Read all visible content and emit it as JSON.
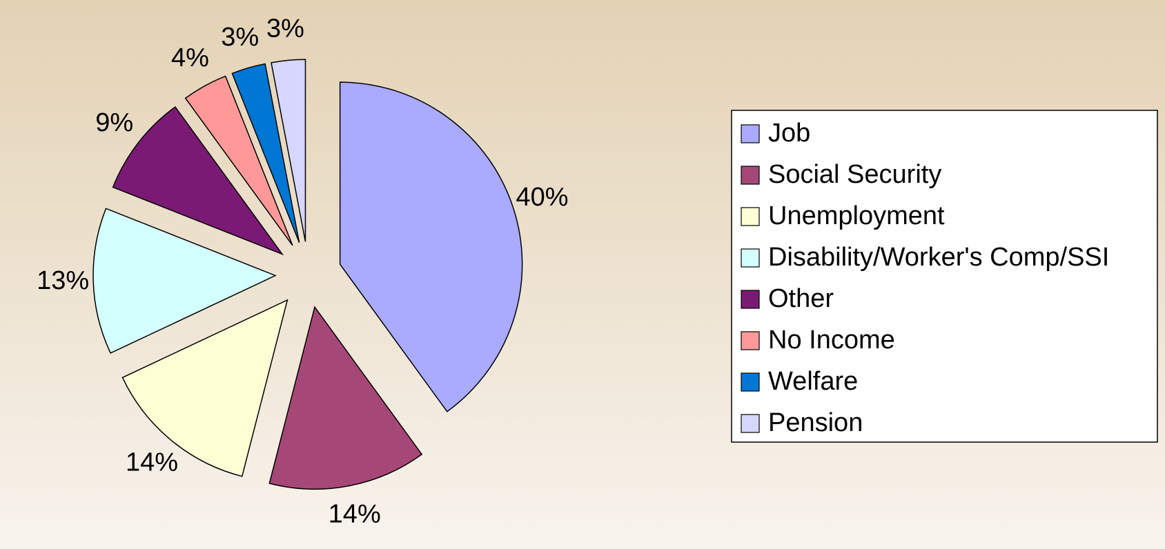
{
  "chart_data": {
    "type": "pie",
    "categories": [
      "Job",
      "Social Security",
      "Unemployment",
      "Disability/Worker's Comp/SSI",
      "Other",
      "No Income",
      "Welfare",
      "Pension"
    ],
    "values": [
      40,
      14,
      14,
      13,
      9,
      4,
      3,
      3
    ],
    "value_labels": [
      "40%",
      "14%",
      "14%",
      "13%",
      "9%",
      "4%",
      "3%",
      "3%"
    ],
    "colors": [
      "#aaaaff",
      "#a64877",
      "#ffffd6",
      "#d4ffff",
      "#7b1a75",
      "#ff9999",
      "#0077d4",
      "#d6d6ff"
    ],
    "legend": "right"
  }
}
